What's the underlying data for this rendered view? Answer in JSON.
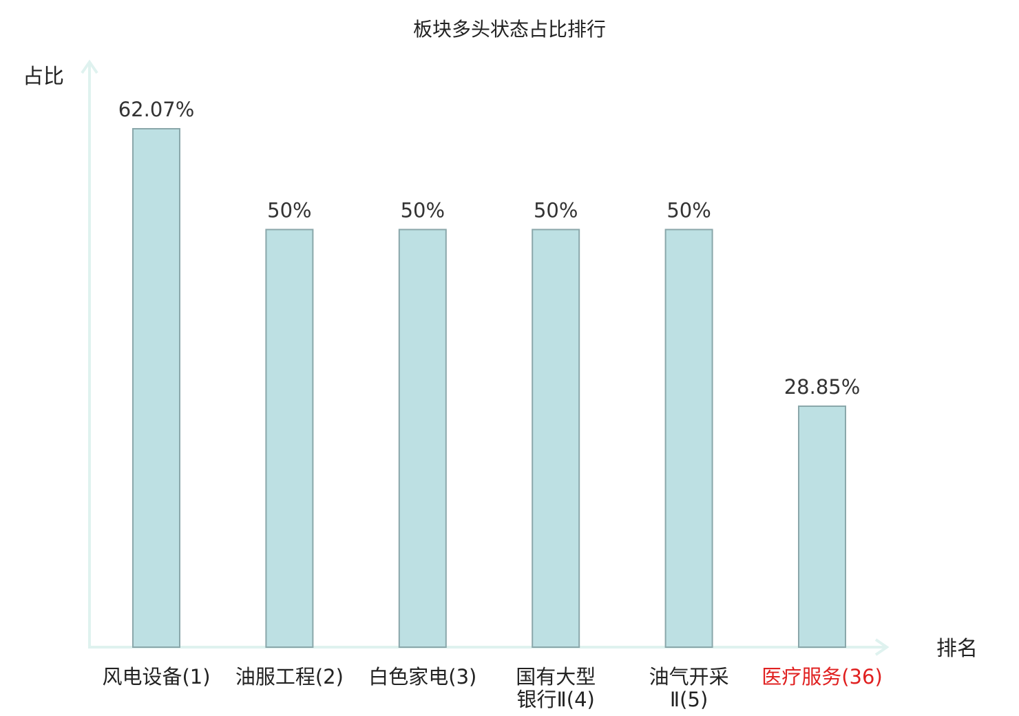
{
  "chart_data": {
    "type": "bar",
    "title": "板块多头状态占比排行",
    "xlabel": "排名",
    "ylabel": "占比",
    "categories": [
      [
        "风电设备(1)"
      ],
      [
        "油服工程(2)"
      ],
      [
        "白色家电(3)"
      ],
      [
        "国有大型",
        "银行Ⅱ(4)"
      ],
      [
        "油气开采",
        "Ⅱ(5)"
      ],
      [
        "医疗服务(36)"
      ]
    ],
    "values": [
      62.07,
      50,
      50,
      50,
      50,
      28.85
    ],
    "value_labels": [
      "62.07%",
      "50%",
      "50%",
      "50%",
      "50%",
      "28.85%"
    ],
    "highlight_index": 5,
    "ylim": [
      0,
      70
    ],
    "grid": false,
    "legend": "none",
    "colors": {
      "bar_fill": "#bde0e3",
      "bar_stroke": "#8aa7aa",
      "axis": "#dff2ef",
      "label": "#222222",
      "highlight": "#e02020"
    }
  }
}
